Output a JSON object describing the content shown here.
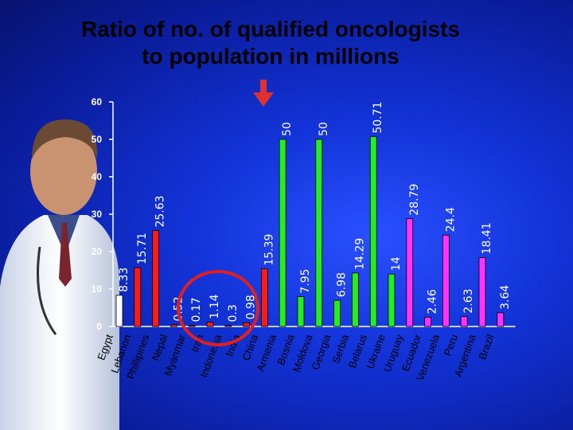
{
  "title_line1": "Ratio of no. of qualified oncologists",
  "title_line2": "to population in millions",
  "colors": {
    "white": "#ffffff",
    "red": "#ff1a1a",
    "green": "#22ee22",
    "magenta": "#ff33ff",
    "circle": "#e02020",
    "arrow": "#e03030"
  },
  "chart_data": {
    "type": "bar",
    "title": "Ratio of no. of qualified oncologists to population in millions",
    "ylim": [
      0,
      60
    ],
    "yticks": [
      0,
      10,
      20,
      30,
      40,
      50,
      60
    ],
    "categories": [
      "Egypt",
      "Lebanon",
      "Phillipines",
      "Nepal",
      "Myanmar",
      "Iran",
      "Indonesia",
      "India",
      "China",
      "Armenia",
      "Bosnia",
      "Moldova",
      "Georgia",
      "Serbia",
      "Belarus",
      "Ukraine",
      "Uruguay",
      "Ecuador",
      "Venezuela",
      "Peru",
      "Argentina",
      "Brazil"
    ],
    "values": [
      8.33,
      15.71,
      25.63,
      0.52,
      0.17,
      1.14,
      0.3,
      0.98,
      15.39,
      50,
      7.95,
      50,
      6.98,
      14.29,
      50.71,
      14,
      28.79,
      2.46,
      24.4,
      2.63,
      18.41,
      3.64
    ],
    "value_labels": [
      "8.33",
      "15.71",
      "25.63",
      "0.52",
      "0.17",
      "1.14",
      "0.3",
      "0.98",
      "15.39",
      "50",
      "7.95",
      "50",
      "6.98",
      "14.29",
      "50.71",
      "14",
      "28.79",
      "2.46",
      "24.4",
      "2.63",
      "18.41",
      "3.64"
    ],
    "bar_colors": [
      "white",
      "red",
      "red",
      "red",
      "red",
      "red",
      "red",
      "red",
      "red",
      "green",
      "green",
      "green",
      "green",
      "green",
      "green",
      "green",
      "magenta",
      "magenta",
      "magenta",
      "magenta",
      "magenta",
      "magenta"
    ],
    "grid": false,
    "legend": "none"
  }
}
